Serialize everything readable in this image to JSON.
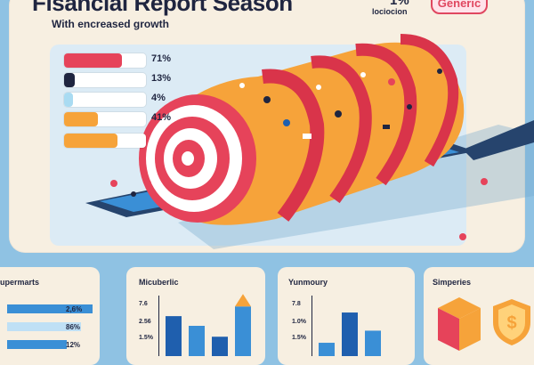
{
  "header": {
    "title": "Fisancial Report Season",
    "subtitle": "With encreased growth",
    "top_right_pct": "1%",
    "top_right_caption": "lociocion",
    "badge_label": "Generic"
  },
  "main_chart": {
    "rows": [
      {
        "label": "71%",
        "value": 71,
        "color": "#e6435a"
      },
      {
        "label": "13%",
        "value": 13,
        "color": "#1f2540"
      },
      {
        "label": "4%",
        "value": 4,
        "color": "#a9dbf2"
      },
      {
        "label": "41%",
        "value": 41,
        "color": "#f6a33a"
      },
      {
        "label": "",
        "value": 65,
        "color": "#f6a33a"
      }
    ]
  },
  "cards": {
    "supermarts": {
      "title": "upermarts",
      "rows": [
        {
          "label": "2,6%",
          "value": 1.0
        },
        {
          "label": "86%",
          "value": 0.86
        },
        {
          "label": "12%",
          "value": 0.7
        }
      ]
    },
    "micuberlic": {
      "title": "Micuberlic",
      "y_ticks": [
        "7.6",
        "2.56",
        "1.5%"
      ],
      "bars": [
        {
          "value": 0.66,
          "color": "#1f5fae"
        },
        {
          "value": 0.5,
          "color": "#3a8fd6"
        },
        {
          "value": 0.32,
          "color": "#1f5fae"
        },
        {
          "value": 0.82,
          "color": "#3a8fd6"
        }
      ]
    },
    "yunmoury": {
      "title": "Yunmoury",
      "y_ticks": [
        "7.8",
        "1.0%",
        "1.5%"
      ],
      "bars": [
        {
          "value": 0.22,
          "color": "#3a8fd6"
        },
        {
          "value": 0.72,
          "color": "#1f5fae"
        },
        {
          "value": 0.42,
          "color": "#3a8fd6"
        }
      ]
    },
    "simperies": {
      "title": "Simperies",
      "icons": [
        "box-icon",
        "shield-dollar-icon"
      ]
    }
  },
  "colors": {
    "background": "#8fc2e3",
    "panel": "#f7efe1",
    "accent_red": "#e6435a",
    "accent_orange": "#f6a33a",
    "navy": "#1f2540"
  }
}
